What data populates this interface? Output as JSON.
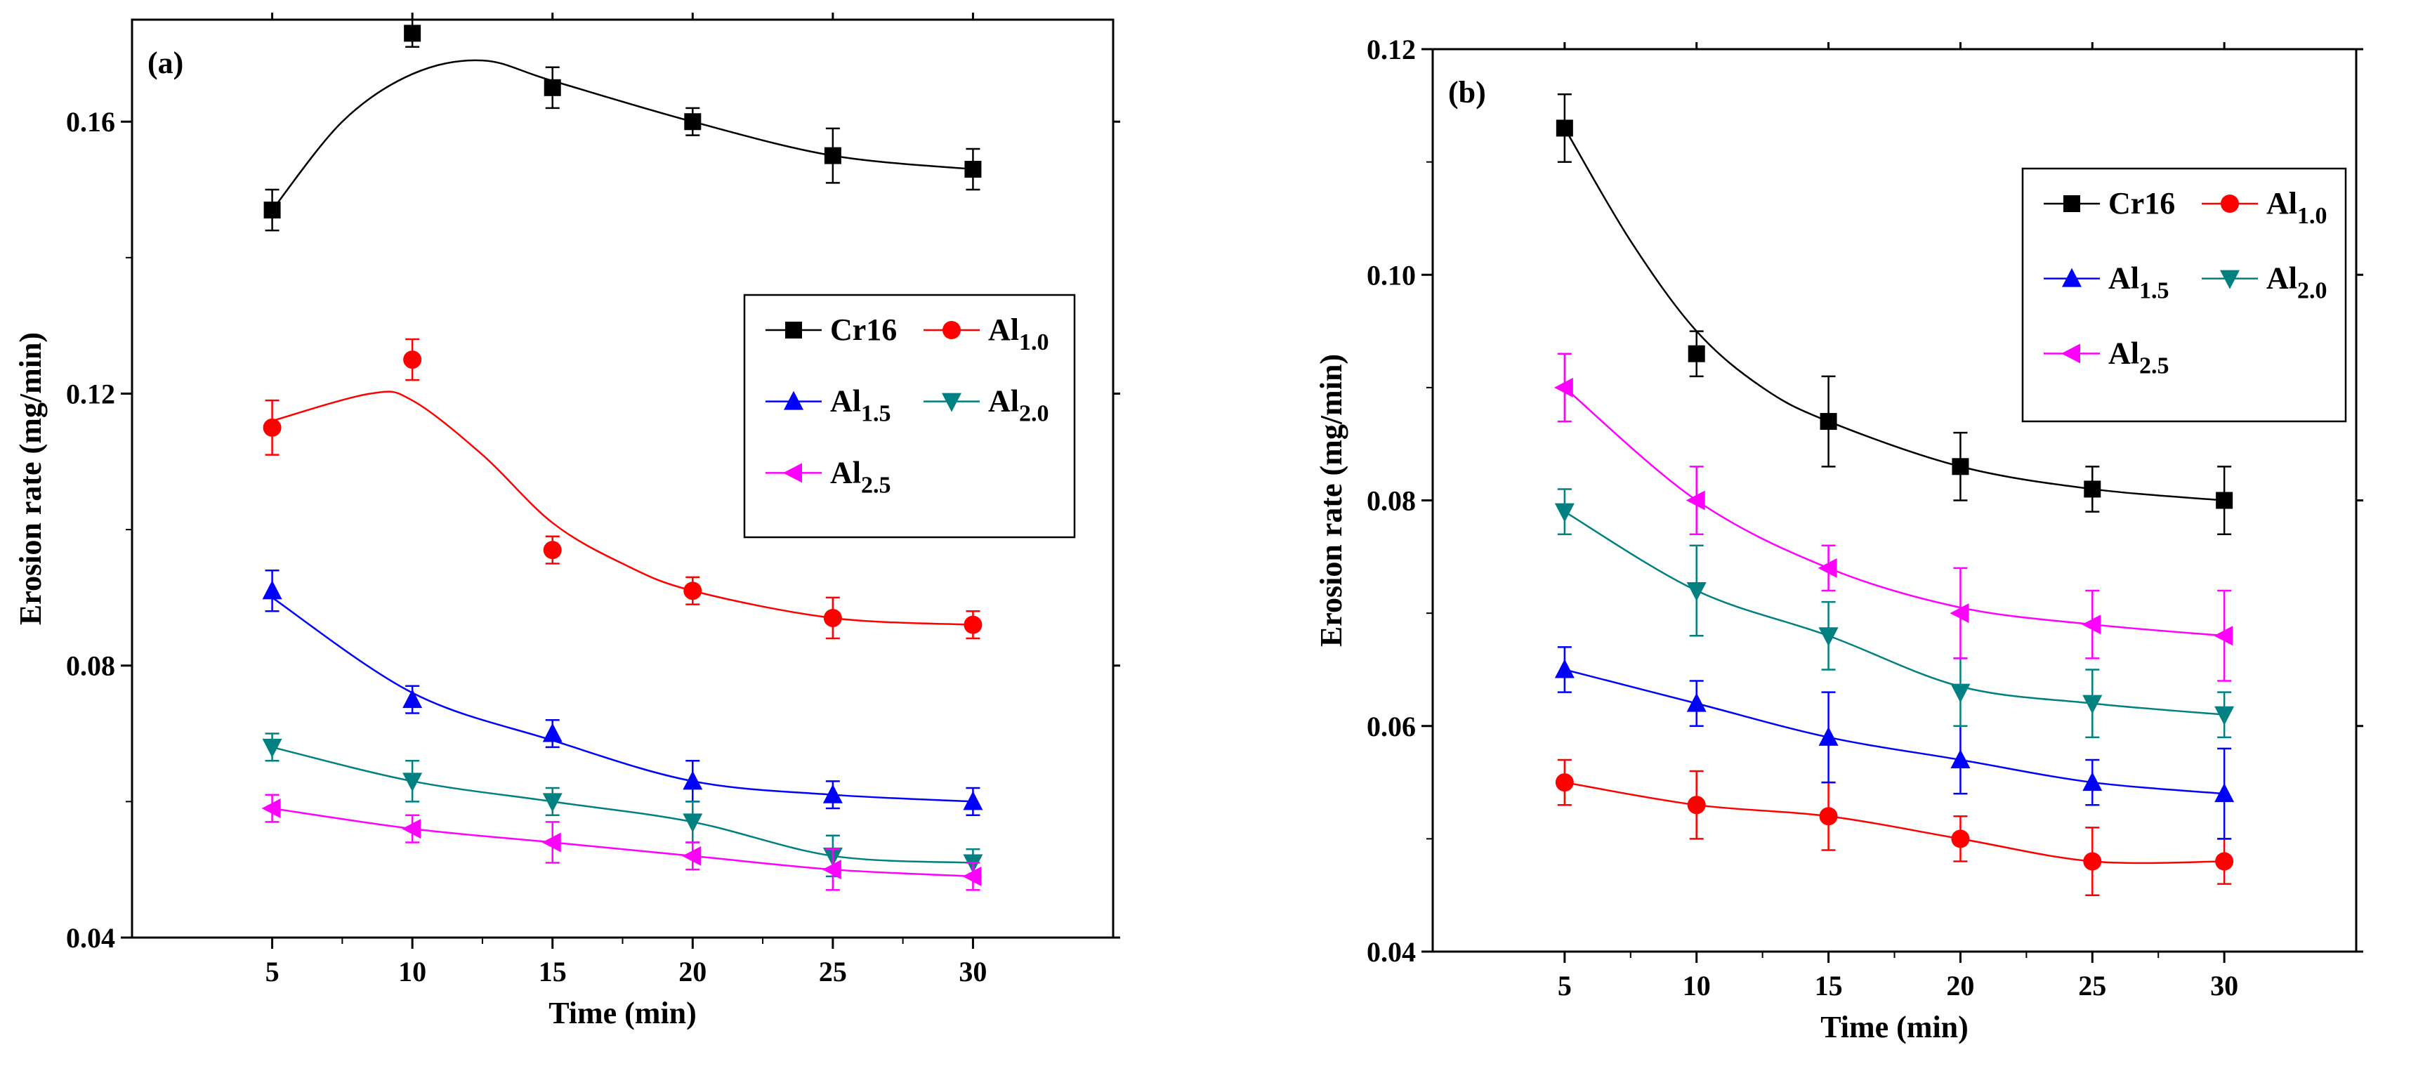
{
  "chart_data": [
    {
      "type": "line",
      "panel_label": "(a)",
      "xlabel": "Time (min)",
      "ylabel": "Erosion rate (mg/min)",
      "x": [
        5,
        10,
        15,
        20,
        25,
        30
      ],
      "xticks": [
        "5",
        "10",
        "15",
        "20",
        "25",
        "30"
      ],
      "xlim": [
        0,
        35
      ],
      "ylim": [
        0.04,
        0.175
      ],
      "yticks": [
        "0.04",
        "0.08",
        "0.12",
        "0.16"
      ],
      "legend_position": "top-right",
      "series": [
        {
          "name": "Cr16",
          "name_main": "Cr16",
          "name_sub": "",
          "color": "#000000",
          "marker": "square",
          "values": [
            0.147,
            0.173,
            0.165,
            0.16,
            0.155,
            0.153
          ],
          "errors": [
            0.003,
            0.002,
            0.003,
            0.002,
            0.004,
            0.003
          ],
          "fit": [
            [
              5,
              0.147
            ],
            [
              7.5,
              0.16
            ],
            [
              10,
              0.167
            ],
            [
              12.5,
              0.169
            ],
            [
              15,
              0.166
            ],
            [
              20,
              0.16
            ],
            [
              25,
              0.155
            ],
            [
              30,
              0.153
            ]
          ]
        },
        {
          "name": "Al1.0",
          "name_main": "Al",
          "name_sub": "1.0",
          "color": "#ff0000",
          "marker": "circle",
          "values": [
            0.115,
            0.125,
            0.097,
            0.091,
            0.087,
            0.086
          ],
          "errors": [
            0.004,
            0.003,
            0.002,
            0.002,
            0.003,
            0.002
          ],
          "fit": [
            [
              5,
              0.116
            ],
            [
              8.5,
              0.12
            ],
            [
              10,
              0.119
            ],
            [
              12.5,
              0.111
            ],
            [
              15,
              0.101
            ],
            [
              17.5,
              0.095
            ],
            [
              20,
              0.091
            ],
            [
              25,
              0.087
            ],
            [
              30,
              0.086
            ]
          ]
        },
        {
          "name": "Al1.5",
          "name_main": "Al",
          "name_sub": "1.5",
          "color": "#0000ff",
          "marker": "triangle-up",
          "values": [
            0.091,
            0.075,
            0.07,
            0.063,
            0.061,
            0.06
          ],
          "errors": [
            0.003,
            0.002,
            0.002,
            0.003,
            0.002,
            0.002
          ],
          "fit": [
            [
              5,
              0.09
            ],
            [
              10,
              0.076
            ],
            [
              15,
              0.069
            ],
            [
              20,
              0.063
            ],
            [
              25,
              0.061
            ],
            [
              30,
              0.06
            ]
          ]
        },
        {
          "name": "Al2.0",
          "name_main": "Al",
          "name_sub": "2.0",
          "color": "#008080",
          "marker": "triangle-down",
          "values": [
            0.068,
            0.063,
            0.06,
            0.057,
            0.052,
            0.051
          ],
          "errors": [
            0.002,
            0.003,
            0.002,
            0.003,
            0.003,
            0.002
          ],
          "fit": [
            [
              5,
              0.068
            ],
            [
              10,
              0.063
            ],
            [
              15,
              0.06
            ],
            [
              20,
              0.057
            ],
            [
              25,
              0.052
            ],
            [
              30,
              0.051
            ]
          ]
        },
        {
          "name": "Al2.5",
          "name_main": "Al",
          "name_sub": "2.5",
          "color": "#ff00ff",
          "marker": "triangle-left",
          "values": [
            0.059,
            0.056,
            0.054,
            0.052,
            0.05,
            0.049
          ],
          "errors": [
            0.002,
            0.002,
            0.003,
            0.002,
            0.003,
            0.002
          ],
          "fit": [
            [
              5,
              0.059
            ],
            [
              10,
              0.056
            ],
            [
              15,
              0.054
            ],
            [
              20,
              0.052
            ],
            [
              25,
              0.05
            ],
            [
              30,
              0.049
            ]
          ]
        }
      ]
    },
    {
      "type": "line",
      "panel_label": "(b)",
      "xlabel": "Time (min)",
      "ylabel": "Erosion rate (mg/min)",
      "x": [
        5,
        10,
        15,
        20,
        25,
        30
      ],
      "xticks": [
        "5",
        "10",
        "15",
        "20",
        "25",
        "30"
      ],
      "xlim": [
        0,
        35
      ],
      "ylim": [
        0.04,
        0.12
      ],
      "yticks": [
        "0.04",
        "0.06",
        "0.08",
        "0.10",
        "0.12"
      ],
      "legend_position": "top-right",
      "series": [
        {
          "name": "Cr16",
          "name_main": "Cr16",
          "name_sub": "",
          "color": "#000000",
          "marker": "square",
          "values": [
            0.113,
            0.093,
            0.087,
            0.083,
            0.081,
            0.08
          ],
          "errors": [
            0.003,
            0.002,
            0.004,
            0.003,
            0.002,
            0.003
          ],
          "fit": [
            [
              5,
              0.113
            ],
            [
              7.5,
              0.103
            ],
            [
              10,
              0.095
            ],
            [
              12.5,
              0.09
            ],
            [
              15,
              0.087
            ],
            [
              20,
              0.083
            ],
            [
              25,
              0.081
            ],
            [
              30,
              0.08
            ]
          ]
        },
        {
          "name": "Al1.0",
          "name_main": "Al",
          "name_sub": "1.0",
          "color": "#ff0000",
          "marker": "circle",
          "values": [
            0.055,
            0.053,
            0.052,
            0.05,
            0.048,
            0.048
          ],
          "errors": [
            0.002,
            0.003,
            0.003,
            0.002,
            0.003,
            0.002
          ],
          "fit": [
            [
              5,
              0.055
            ],
            [
              10,
              0.053
            ],
            [
              15,
              0.052
            ],
            [
              20,
              0.05
            ],
            [
              25,
              0.048
            ],
            [
              30,
              0.048
            ]
          ]
        },
        {
          "name": "Al1.5",
          "name_main": "Al",
          "name_sub": "1.5",
          "color": "#0000ff",
          "marker": "triangle-up",
          "values": [
            0.065,
            0.062,
            0.059,
            0.057,
            0.055,
            0.054
          ],
          "errors": [
            0.002,
            0.002,
            0.004,
            0.003,
            0.002,
            0.004
          ],
          "fit": [
            [
              5,
              0.065
            ],
            [
              10,
              0.062
            ],
            [
              15,
              0.059
            ],
            [
              20,
              0.057
            ],
            [
              25,
              0.055
            ],
            [
              30,
              0.054
            ]
          ]
        },
        {
          "name": "Al2.0",
          "name_main": "Al",
          "name_sub": "2.0",
          "color": "#008080",
          "marker": "triangle-down",
          "values": [
            0.079,
            0.072,
            0.068,
            0.063,
            0.062,
            0.061
          ],
          "errors": [
            0.002,
            0.004,
            0.003,
            0.003,
            0.003,
            0.002
          ],
          "fit": [
            [
              5,
              0.079
            ],
            [
              10,
              0.072
            ],
            [
              15,
              0.068
            ],
            [
              20,
              0.0635
            ],
            [
              25,
              0.062
            ],
            [
              30,
              0.061
            ]
          ]
        },
        {
          "name": "Al2.5",
          "name_main": "Al",
          "name_sub": "2.5",
          "color": "#ff00ff",
          "marker": "triangle-left",
          "values": [
            0.09,
            0.08,
            0.074,
            0.07,
            0.069,
            0.068
          ],
          "errors": [
            0.003,
            0.003,
            0.002,
            0.004,
            0.003,
            0.004
          ],
          "fit": [
            [
              5,
              0.09
            ],
            [
              10,
              0.08
            ],
            [
              15,
              0.074
            ],
            [
              20,
              0.0705
            ],
            [
              25,
              0.069
            ],
            [
              30,
              0.068
            ]
          ]
        }
      ]
    }
  ]
}
